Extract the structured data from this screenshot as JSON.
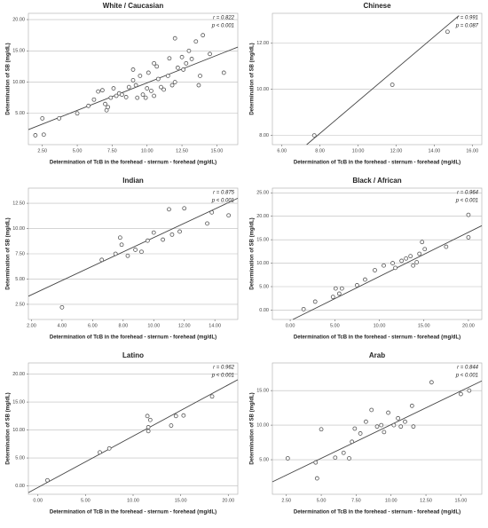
{
  "chart_data": [
    {
      "type": "scatter",
      "title": "White / Caucasian",
      "annotations": [
        "r = 0.822",
        "p < 0.001"
      ],
      "x_label": "Determination of TcB in the forehead - sternum - forehead (mg/dL)",
      "y_label": "Determination of SB (mg/dL)",
      "color": "#555555",
      "grid": true,
      "xlim": [
        1.5,
        16.5
      ],
      "ylim": [
        0,
        21
      ],
      "xticks": [
        {
          "value": 2.5,
          "label": "2.50"
        },
        {
          "value": 5,
          "label": "5.00"
        },
        {
          "value": 7.5,
          "label": "7.50"
        },
        {
          "value": 10,
          "label": "10.00"
        },
        {
          "value": 12.5,
          "label": "12.50"
        },
        {
          "value": 15,
          "label": "15.00"
        }
      ],
      "yticks": [
        {
          "value": 5,
          "label": "5.00"
        },
        {
          "value": 10,
          "label": "10.00"
        },
        {
          "value": 15,
          "label": "15.00"
        },
        {
          "value": 20,
          "label": "20.00"
        }
      ],
      "x": [
        2.0,
        2.5,
        2.6,
        3.7,
        5.0,
        5.8,
        6.2,
        6.5,
        6.8,
        7.0,
        7.1,
        7.2,
        7.4,
        7.6,
        7.8,
        8.0,
        8.2,
        8.5,
        8.7,
        9.0,
        9.0,
        9.2,
        9.3,
        9.5,
        9.7,
        9.9,
        10.0,
        10.1,
        10.3,
        10.5,
        10.5,
        10.7,
        10.8,
        11.0,
        11.2,
        11.5,
        11.6,
        11.8,
        12.0,
        12.0,
        12.2,
        12.5,
        12.6,
        12.8,
        13.0,
        13.2,
        13.5,
        13.7,
        13.8,
        14.0,
        14.5,
        15.5
      ],
      "values": [
        1.5,
        4.2,
        1.6,
        4.2,
        5.0,
        6.2,
        7.2,
        8.5,
        8.7,
        6.5,
        5.5,
        6.0,
        7.5,
        9.0,
        7.8,
        8.2,
        8.0,
        7.6,
        9.2,
        12.0,
        10.3,
        9.5,
        7.5,
        11.0,
        8.0,
        7.5,
        9.0,
        11.5,
        8.6,
        13.0,
        7.8,
        12.5,
        10.5,
        9.2,
        8.8,
        11.0,
        13.8,
        9.5,
        17.0,
        10.0,
        12.3,
        14.0,
        12.0,
        13.0,
        15.0,
        13.7,
        16.5,
        9.5,
        11.0,
        17.5,
        14.5,
        11.5
      ],
      "fit_line": {
        "x": [
          1.5,
          16.5
        ],
        "y": [
          2.4,
          15.6
        ]
      }
    },
    {
      "type": "scatter",
      "title": "Chinese",
      "annotations": [
        "r = 0.991",
        "p = 0.087"
      ],
      "x_label": "Determination of TcB in the forehead - sternum - forehead (mg/dL)",
      "y_label": "Determination of SB (mg/dL)",
      "color": "#555555",
      "grid": true,
      "xlim": [
        5.5,
        16.5
      ],
      "ylim": [
        7.6,
        13.3
      ],
      "xticks": [
        {
          "value": 6,
          "label": "6.00"
        },
        {
          "value": 8,
          "label": "8.00"
        },
        {
          "value": 10,
          "label": "10.00"
        },
        {
          "value": 12,
          "label": "12.00"
        },
        {
          "value": 14,
          "label": "14.00"
        },
        {
          "value": 16,
          "label": "16.00"
        }
      ],
      "yticks": [
        {
          "value": 8,
          "label": "8.00"
        },
        {
          "value": 10,
          "label": "10.00"
        },
        {
          "value": 12,
          "label": "12.00"
        }
      ],
      "x": [
        7.7,
        11.8,
        14.7
      ],
      "values": [
        8.0,
        10.2,
        12.5
      ],
      "fit_line": {
        "x": [
          7.3,
          15.3
        ],
        "y": [
          7.6,
          13.2
        ]
      }
    },
    {
      "type": "scatter",
      "title": "Indian",
      "annotations": [
        "r = 0.875",
        "p < 0.001"
      ],
      "x_label": "Determination of TcB in the forehead - sternum - forehead (mg/dL)",
      "y_label": "Determination of SB (mg/dL)",
      "color": "#555555",
      "grid": true,
      "xlim": [
        1.8,
        15.5
      ],
      "ylim": [
        1,
        14
      ],
      "xticks": [
        {
          "value": 2,
          "label": "2.00"
        },
        {
          "value": 4,
          "label": "4.00"
        },
        {
          "value": 6,
          "label": "6.00"
        },
        {
          "value": 8,
          "label": "8.00"
        },
        {
          "value": 10,
          "label": "10.00"
        },
        {
          "value": 12,
          "label": "12.00"
        },
        {
          "value": 14,
          "label": "14.00"
        }
      ],
      "yticks": [
        {
          "value": 2.5,
          "label": "2.50"
        },
        {
          "value": 5,
          "label": "5.00"
        },
        {
          "value": 7.5,
          "label": "7.50"
        },
        {
          "value": 10,
          "label": "10.00"
        },
        {
          "value": 12.5,
          "label": "12.50"
        }
      ],
      "x": [
        4.0,
        6.6,
        7.5,
        7.8,
        7.9,
        8.3,
        8.8,
        9.2,
        9.6,
        10.0,
        10.6,
        11.0,
        11.2,
        11.7,
        12.0,
        13.5,
        13.8,
        14.9
      ],
      "values": [
        2.2,
        6.9,
        7.5,
        9.1,
        8.4,
        7.3,
        7.9,
        7.7,
        8.8,
        9.6,
        8.9,
        11.9,
        9.4,
        9.7,
        12.0,
        10.5,
        11.6,
        11.3
      ],
      "fit_line": {
        "x": [
          1.8,
          15.5
        ],
        "y": [
          3.3,
          13.0
        ]
      }
    },
    {
      "type": "scatter",
      "title": "Black / African",
      "annotations": [
        "r = 0.964",
        "p < 0.001"
      ],
      "x_label": "Determination of TcB in the forehead - sternum - forehead (mg/dL)",
      "y_label": "Determination of SB (mg/dL)",
      "color": "#555555",
      "grid": true,
      "xlim": [
        -2,
        21.5
      ],
      "ylim": [
        -2,
        26
      ],
      "xticks": [
        {
          "value": 0,
          "label": "0.00"
        },
        {
          "value": 5,
          "label": "5.00"
        },
        {
          "value": 10,
          "label": "10.00"
        },
        {
          "value": 15,
          "label": "15.00"
        },
        {
          "value": 20,
          "label": "20.00"
        }
      ],
      "yticks": [
        {
          "value": 0,
          "label": "0.00"
        },
        {
          "value": 5,
          "label": "5.00"
        },
        {
          "value": 10,
          "label": "10.00"
        },
        {
          "value": 15,
          "label": "15.00"
        },
        {
          "value": 20,
          "label": "20.00"
        },
        {
          "value": 25,
          "label": "25.00"
        }
      ],
      "x": [
        1.5,
        2.8,
        4.8,
        5.1,
        5.5,
        5.8,
        7.5,
        8.4,
        9.5,
        10.5,
        11.5,
        11.8,
        12.5,
        13.0,
        13.5,
        13.8,
        14.2,
        14.5,
        14.8,
        15.1,
        17.5,
        20.0,
        20.0
      ],
      "values": [
        0.2,
        1.8,
        2.8,
        4.6,
        3.5,
        4.6,
        5.3,
        6.5,
        8.5,
        9.5,
        10.0,
        9.0,
        10.5,
        11.0,
        11.5,
        9.5,
        10.2,
        12.0,
        14.5,
        13.0,
        13.5,
        20.3,
        15.5
      ],
      "fit_line": {
        "x": [
          0.3,
          21.5
        ],
        "y": [
          -2,
          18.0
        ]
      }
    },
    {
      "type": "scatter",
      "title": "Latino",
      "annotations": [
        "r = 0.962",
        "p < 0.001"
      ],
      "x_label": "Determination of TcB in the forehead - sternum - forehead (mg/dL)",
      "y_label": "Determination of SB (mg/dL)",
      "color": "#555555",
      "grid": true,
      "xlim": [
        -1,
        21
      ],
      "ylim": [
        -1.5,
        22
      ],
      "xticks": [
        {
          "value": 0,
          "label": "0.00"
        },
        {
          "value": 5,
          "label": "5.00"
        },
        {
          "value": 10,
          "label": "10.00"
        },
        {
          "value": 15,
          "label": "15.00"
        },
        {
          "value": 20,
          "label": "20.00"
        }
      ],
      "yticks": [
        {
          "value": 0,
          "label": "0.00"
        },
        {
          "value": 5,
          "label": "5.00"
        },
        {
          "value": 10,
          "label": "10.00"
        },
        {
          "value": 15,
          "label": "15.00"
        },
        {
          "value": 20,
          "label": "20.00"
        }
      ],
      "x": [
        1.0,
        6.5,
        7.5,
        11.5,
        11.6,
        11.6,
        11.8,
        14.0,
        14.5,
        15.3,
        18.3
      ],
      "values": [
        1.0,
        6.0,
        6.7,
        12.5,
        10.5,
        9.8,
        11.8,
        10.8,
        12.5,
        12.6,
        16.0
      ],
      "fit_line": {
        "x": [
          -1,
          21
        ],
        "y": [
          -1.2,
          19.0
        ]
      }
    },
    {
      "type": "scatter",
      "title": "Arab",
      "annotations": [
        "r = 0.844",
        "p < 0.001"
      ],
      "x_label": "Determination of TcB in the forehead - sternum - forehead (mg/dL)",
      "y_label": "Determination of SB (mg/dL)",
      "color": "#555555",
      "grid": true,
      "xlim": [
        1.5,
        16.5
      ],
      "ylim": [
        0,
        19
      ],
      "xticks": [
        {
          "value": 2.5,
          "label": "2.50"
        },
        {
          "value": 5,
          "label": "5.00"
        },
        {
          "value": 7.5,
          "label": "7.50"
        },
        {
          "value": 10,
          "label": "10.00"
        },
        {
          "value": 12.5,
          "label": "12.50"
        },
        {
          "value": 15,
          "label": "15.00"
        }
      ],
      "yticks": [
        {
          "value": 5,
          "label": "5.00"
        },
        {
          "value": 10,
          "label": "10.00"
        },
        {
          "value": 15,
          "label": "15.00"
        }
      ],
      "x": [
        2.6,
        4.6,
        4.7,
        5.0,
        6.0,
        6.6,
        7.0,
        7.2,
        7.4,
        7.8,
        8.2,
        8.6,
        9.0,
        9.3,
        9.5,
        9.8,
        10.2,
        10.5,
        10.7,
        11.0,
        11.5,
        11.6,
        12.9,
        15.0,
        15.6
      ],
      "values": [
        5.2,
        4.6,
        2.3,
        9.4,
        5.3,
        6.0,
        5.2,
        7.6,
        9.5,
        8.8,
        10.5,
        12.2,
        9.8,
        10.0,
        9.0,
        11.8,
        10.0,
        11.0,
        9.8,
        10.5,
        12.8,
        9.8,
        16.2,
        14.5,
        15.0
      ],
      "fit_line": {
        "x": [
          1.5,
          16.5
        ],
        "y": [
          1.8,
          16.4
        ]
      }
    }
  ]
}
